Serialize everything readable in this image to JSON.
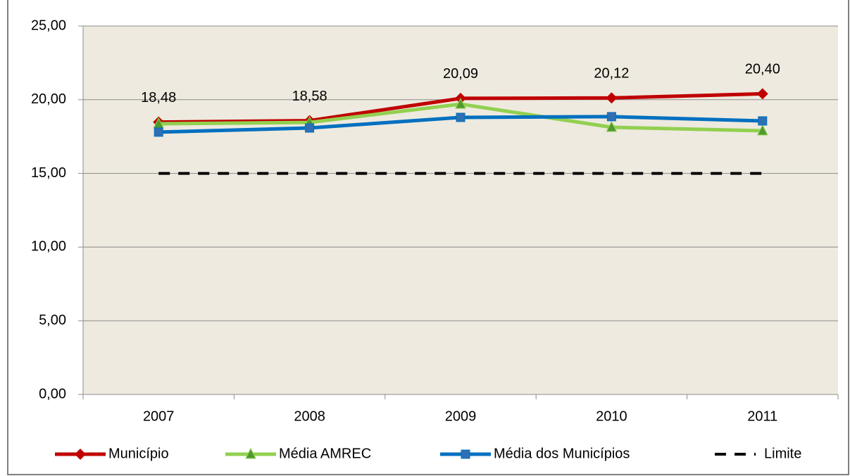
{
  "chart_data": {
    "type": "line",
    "categories": [
      "2007",
      "2008",
      "2009",
      "2010",
      "2011"
    ],
    "series": [
      {
        "name": "Município",
        "color": "#c00000",
        "marker": "diamond",
        "values": [
          18.48,
          18.58,
          20.09,
          20.12,
          20.4
        ],
        "value_labels": [
          "18,48",
          "18,58",
          "20,09",
          "20,12",
          "20,40"
        ]
      },
      {
        "name": "Média AMREC",
        "color": "#92d050",
        "marker": "triangle",
        "marker_color": "#4f9a2f",
        "values": [
          18.37,
          18.46,
          19.7,
          18.13,
          17.89
        ]
      },
      {
        "name": "Média dos Municípios",
        "color": "#0070c0",
        "marker": "square",
        "marker_color": "#2f6fb3",
        "values": [
          17.8,
          18.08,
          18.8,
          18.85,
          18.56
        ]
      },
      {
        "name": "Limite",
        "color": "#000000",
        "dashed": true,
        "values": [
          15,
          15,
          15,
          15,
          15
        ]
      }
    ],
    "ylim": [
      0,
      25
    ],
    "yticks": [
      {
        "value": 0,
        "label": "0,00"
      },
      {
        "value": 5,
        "label": "5,00"
      },
      {
        "value": 10,
        "label": "10,00"
      },
      {
        "value": 15,
        "label": "15,00"
      },
      {
        "value": 20,
        "label": "20,00"
      },
      {
        "value": 25,
        "label": "25,00"
      }
    ],
    "grid": true,
    "legend": "bottom",
    "plot_background": "#eeeadf"
  }
}
